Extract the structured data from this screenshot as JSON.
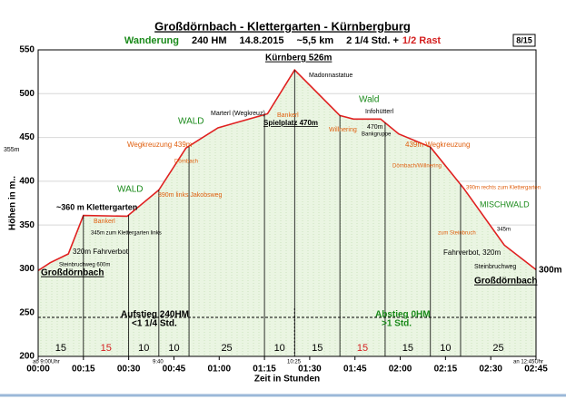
{
  "chart_data": {
    "type": "area",
    "title": "Großdörnbach - Klettergarten - Kürnbergburg",
    "subtitle_parts": [
      {
        "text": "Wanderung",
        "color": "#1a8a1a"
      },
      {
        "text": "240 HM",
        "color": "#000000"
      },
      {
        "text": "14.8.2015",
        "color": "#000000"
      },
      {
        "text": "~5,5 km",
        "color": "#000000"
      },
      {
        "text": "2 1/4 Std. +",
        "color": "#000000"
      },
      {
        "text": "1/2 Rast",
        "color": "#d42020"
      }
    ],
    "badge": "8/15",
    "ylabel": "Höhen in m..",
    "xlabel": "Zeit in Stunden",
    "x": [
      0,
      4,
      10,
      15,
      29.5,
      40,
      49,
      59.6,
      76,
      85,
      100,
      104.5,
      113.5,
      119.5,
      130,
      141,
      154.5,
      165
    ],
    "values": [
      298,
      307,
      317,
      361,
      360,
      390,
      438,
      461,
      477,
      527,
      475,
      471,
      471,
      454,
      439,
      392,
      327,
      299
    ],
    "color": "#e02020",
    "fill": "#e6f3dc",
    "xlim": [
      0,
      165
    ],
    "ylim": [
      200,
      550
    ],
    "yticks": [
      200,
      250,
      300,
      350,
      400,
      450,
      500,
      550
    ],
    "xticks": [
      {
        "value": 0,
        "label": "00:00"
      },
      {
        "value": 15,
        "label": "00:15"
      },
      {
        "value": 30,
        "label": "00:30"
      },
      {
        "value": 45,
        "label": "00:45"
      },
      {
        "value": 60,
        "label": "01:00"
      },
      {
        "value": 75,
        "label": "01:15"
      },
      {
        "value": 90,
        "label": "01:30"
      },
      {
        "value": 105,
        "label": "01:45"
      },
      {
        "value": 120,
        "label": "02:00"
      },
      {
        "value": 135,
        "label": "02:15"
      },
      {
        "value": 150,
        "label": "02:30"
      },
      {
        "value": 165,
        "label": "02:45"
      }
    ],
    "grid": true,
    "segments": {
      "values": [
        15,
        15,
        10,
        10,
        25,
        10,
        15,
        15,
        15,
        10,
        25
      ],
      "colors": [
        "#000000",
        "#d42020",
        "#000000",
        "#000000",
        "#000000",
        "#000000",
        "#000000",
        "#d42020",
        "#000000",
        "#000000",
        "#000000"
      ]
    },
    "annotations": [
      "Kürnberg 526m",
      "Madonnastatue",
      "Spielplatz 470m",
      "Bankerl",
      "Marterl (Wegkreuz)",
      "WALD",
      "Wald",
      "Infohütterl",
      "Willnering",
      "470m",
      "Bankgruppe",
      "439m Wegkreuzung",
      "Wegkreuzung 439m",
      "355m",
      "Dörnbach",
      "390m links Jakobsweg",
      "WALD",
      "~360 m Klettergarten",
      "Bankerl",
      "345m zum Klettergarten links",
      "320m Fahrverbot",
      "Steinbruchweg 600m",
      "Großdörnbach",
      "Dörnbach/Willnering",
      "390m rechts zum Klettergarten",
      "MISCHWALD",
      "zum Steinbruch",
      "345m",
      "Fahrverbot, 320m",
      "Steinbruchweg",
      "Großdörnbach",
      "300m",
      "Aufstieg 240HM",
      "<1 1/4 Std.",
      "Abstieg 0HM",
      ">1 Std.",
      "ab 9:00Uhr",
      "9:40",
      "10:25",
      "an 12:45Uhr"
    ]
  }
}
